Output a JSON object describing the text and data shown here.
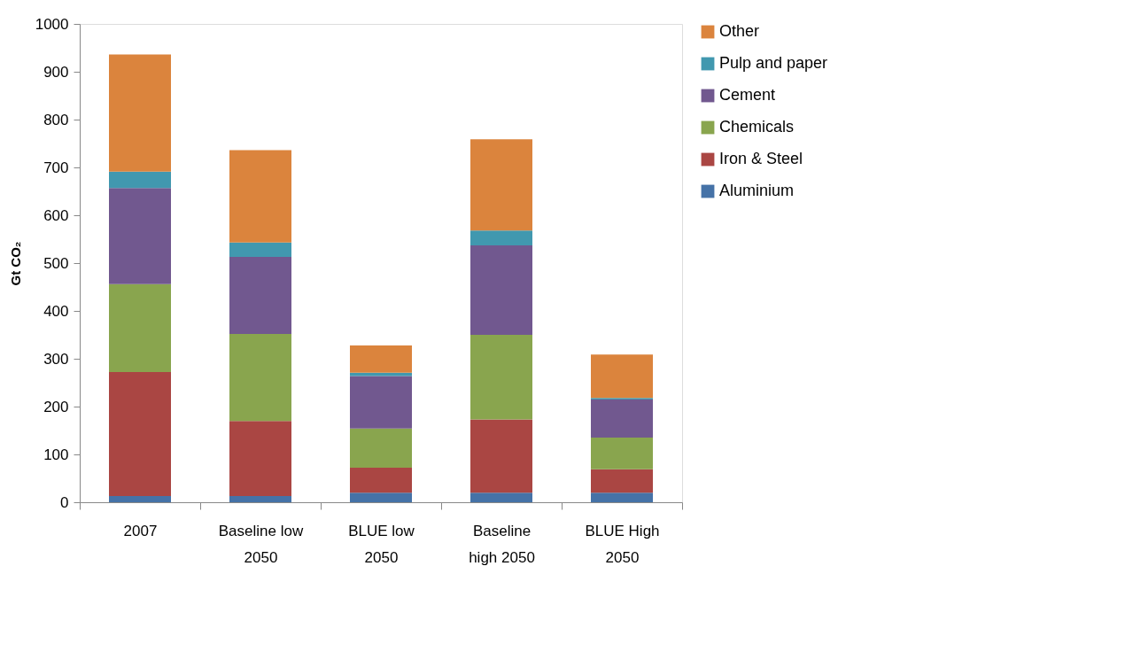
{
  "chart_data": {
    "type": "bar",
    "stacked": true,
    "ylabel": "Gt CO₂",
    "categories": [
      "2007",
      "Baseline low 2050",
      "BLUE low 2050",
      "Baseline high 2050",
      "BLUE High 2050"
    ],
    "series": [
      {
        "name": "Aluminium",
        "color": "#4572a7",
        "values": [
          13,
          13,
          20,
          20,
          20
        ]
      },
      {
        "name": "Iron & Steel",
        "color": "#aa4643",
        "values": [
          259,
          157,
          52,
          153,
          49
        ]
      },
      {
        "name": "Chemicals",
        "color": "#89a54e",
        "values": [
          184,
          182,
          82,
          177,
          66
        ]
      },
      {
        "name": "Cement",
        "color": "#71588f",
        "values": [
          201,
          161,
          110,
          187,
          80
        ]
      },
      {
        "name": "Pulp and paper",
        "color": "#4198af",
        "values": [
          34,
          30,
          7,
          31,
          3
        ]
      },
      {
        "name": "Other",
        "color": "#db843d",
        "values": [
          245,
          193,
          57,
          191,
          91
        ]
      }
    ],
    "ylim": [
      0,
      1000
    ],
    "yticks": [
      0,
      100,
      200,
      300,
      400,
      500,
      600,
      700,
      800,
      900,
      1000
    ],
    "grid": false,
    "legend": "right"
  }
}
